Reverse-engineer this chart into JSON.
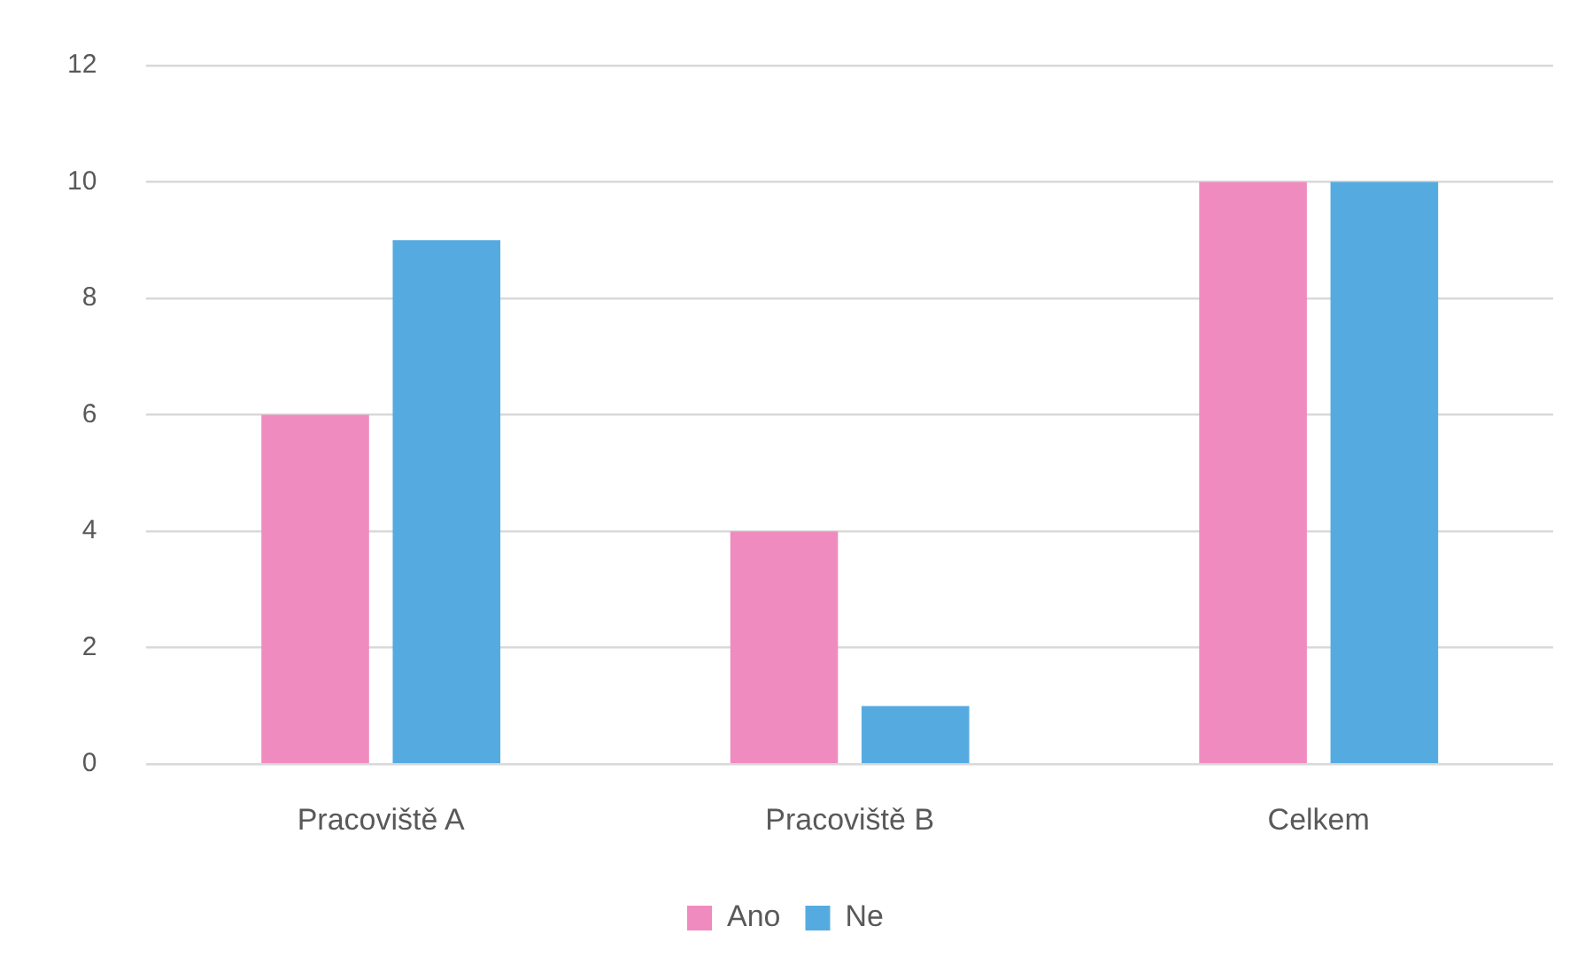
{
  "chart_data": {
    "type": "bar",
    "categories": [
      "Pracoviště A",
      "Pracoviště B",
      "Celkem"
    ],
    "series": [
      {
        "name": "Ano",
        "color": "#f08bc0",
        "values": [
          6,
          4,
          10
        ]
      },
      {
        "name": "Ne",
        "color": "#55abe0",
        "values": [
          9,
          1,
          10
        ]
      }
    ],
    "ylim": [
      0,
      12
    ],
    "yticks": [
      0,
      2,
      4,
      6,
      8,
      10,
      12
    ],
    "grid": "y",
    "legend": "bottom"
  }
}
